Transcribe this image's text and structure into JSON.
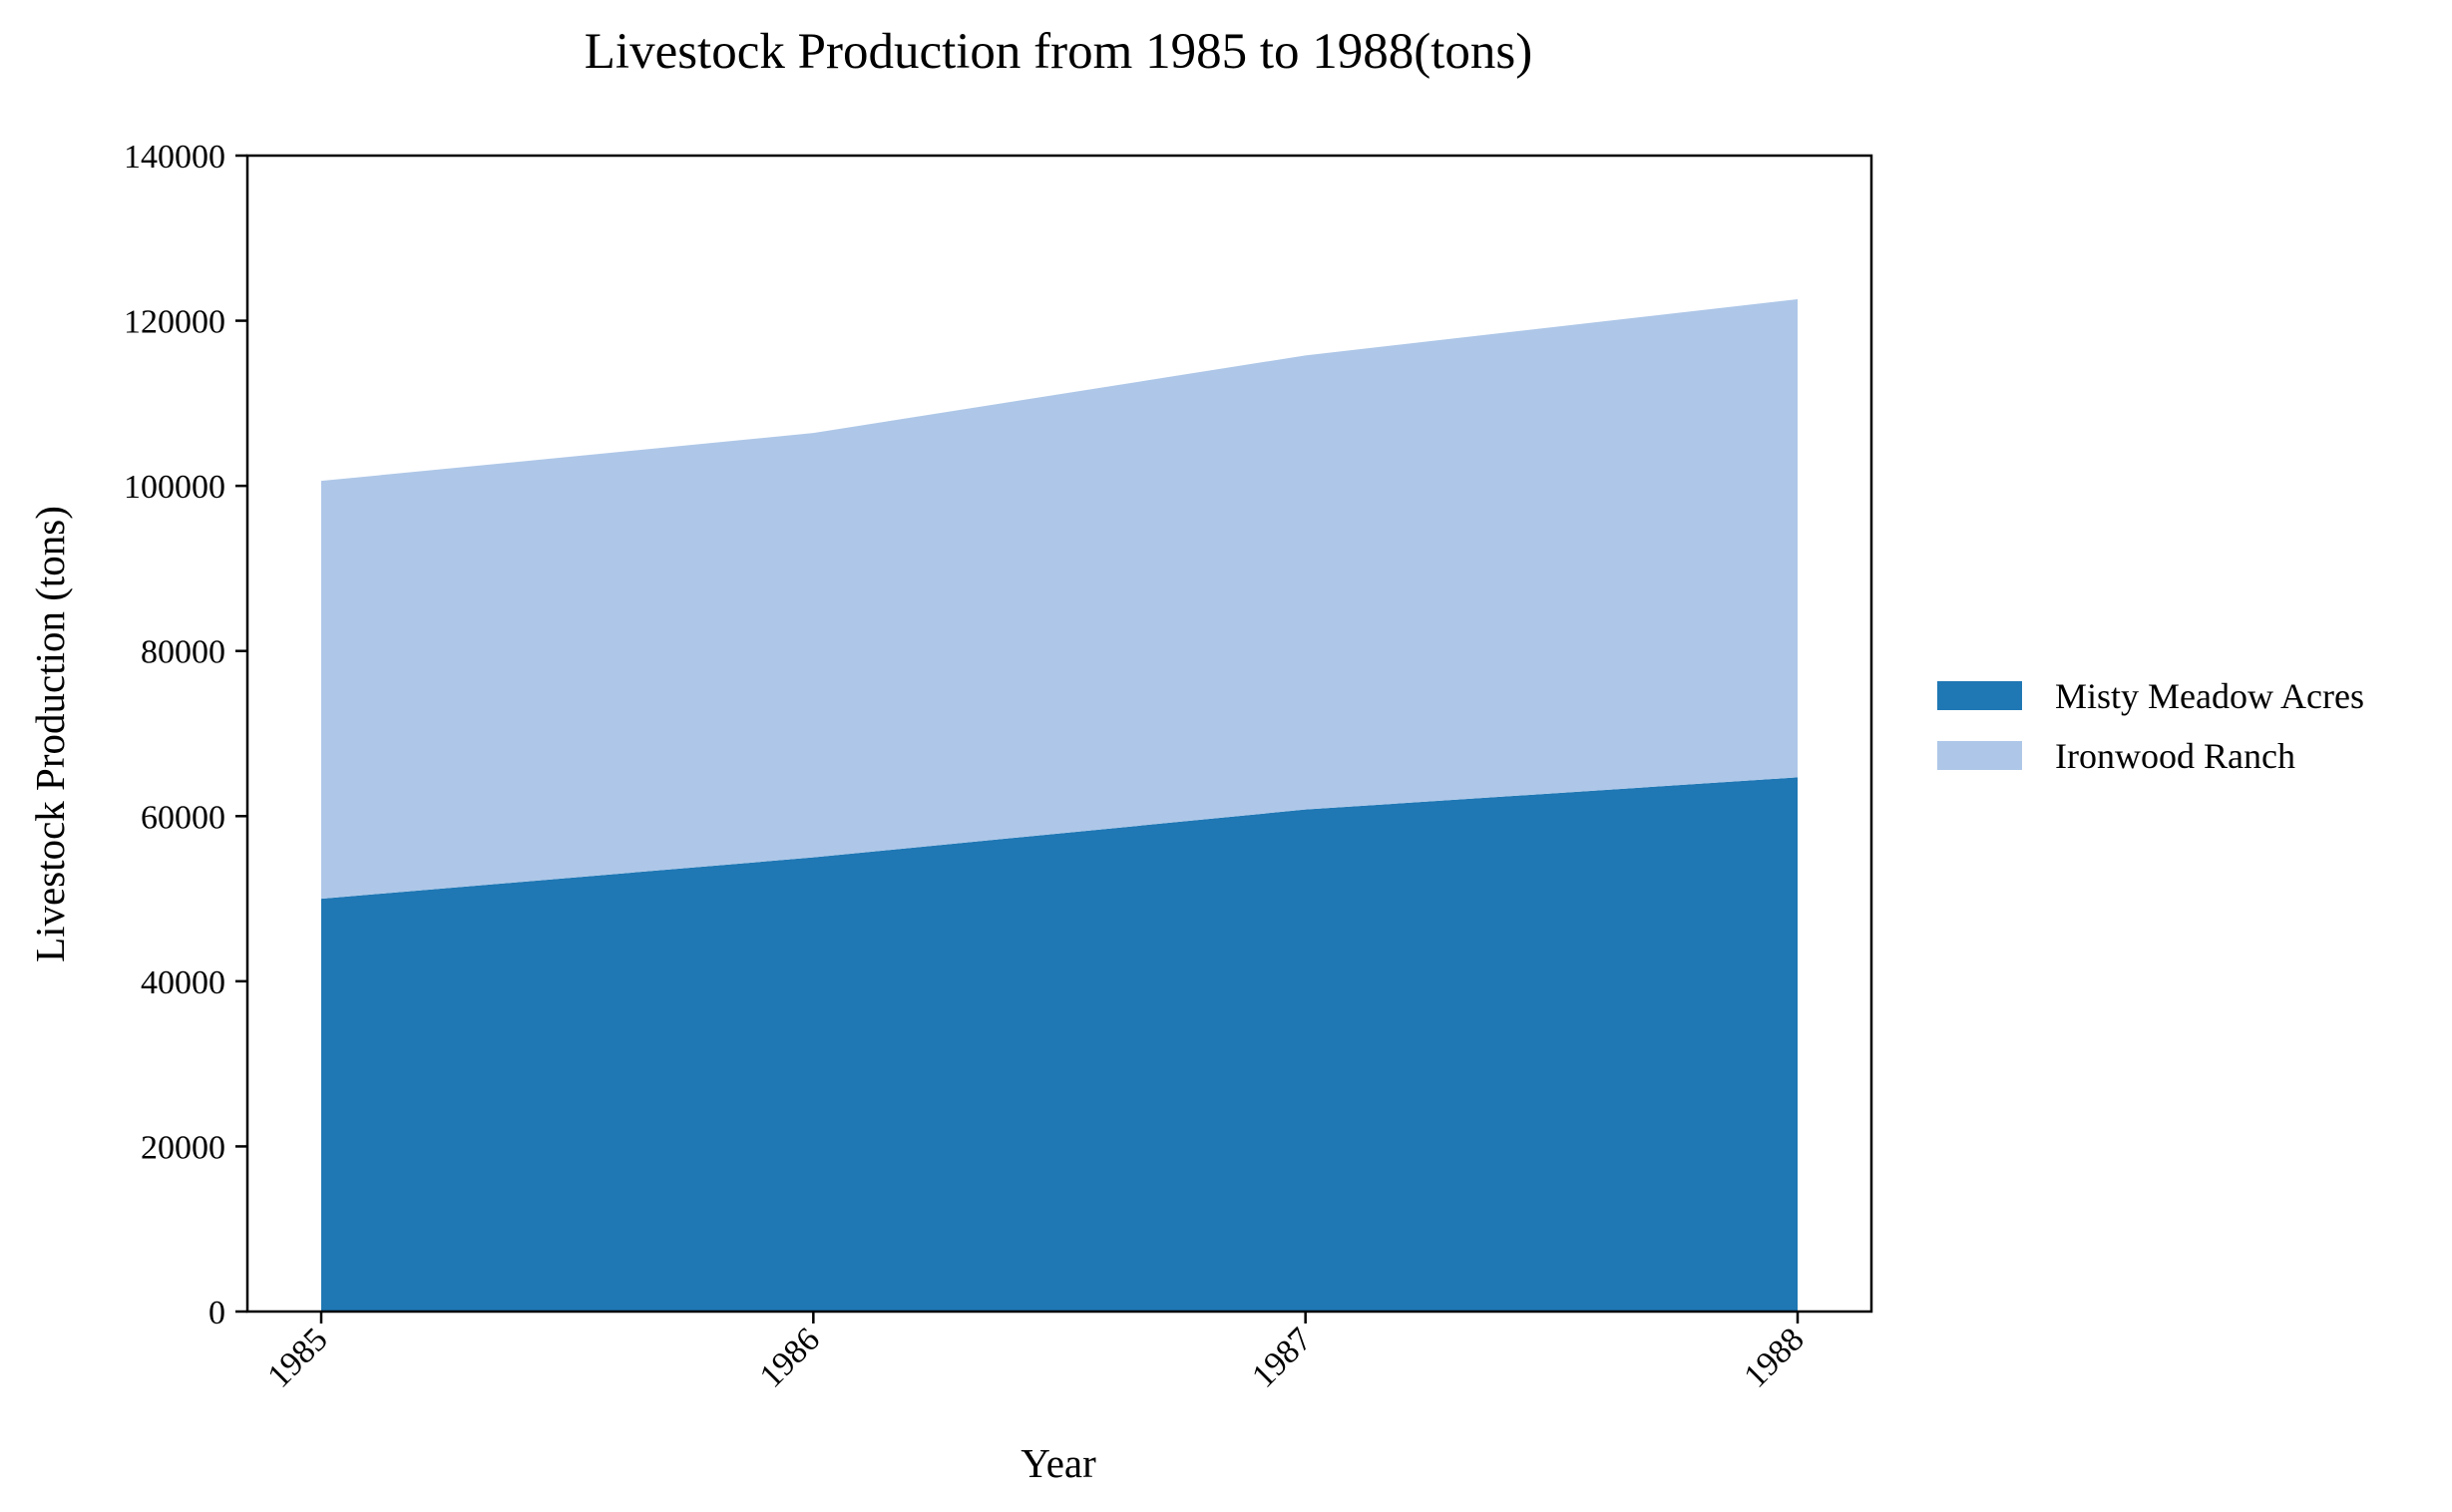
{
  "chart_data": {
    "type": "area",
    "stacked": true,
    "title": "Livestock Production from 1985 to 1988(tons)",
    "xlabel": "Year",
    "ylabel": "Livestock Production (tons)",
    "categories": [
      "1985",
      "1986",
      "1987",
      "1988"
    ],
    "series": [
      {
        "name": "Misty Meadow Acres",
        "values": [
          50000,
          55000,
          60800,
          64700
        ],
        "color": "#1f77b4"
      },
      {
        "name": "Ironwood Ranch",
        "values": [
          50600,
          51400,
          55000,
          57900
        ],
        "color": "#aec7e8"
      }
    ],
    "ylim": [
      0,
      140000
    ],
    "yticks": [
      0,
      20000,
      40000,
      60000,
      80000,
      100000,
      120000,
      140000
    ],
    "ytick_labels": [
      "0",
      "20000",
      "40000",
      "60000",
      "80000",
      "100000",
      "120000",
      "140000"
    ],
    "grid": false,
    "legend_position": "center-right"
  }
}
